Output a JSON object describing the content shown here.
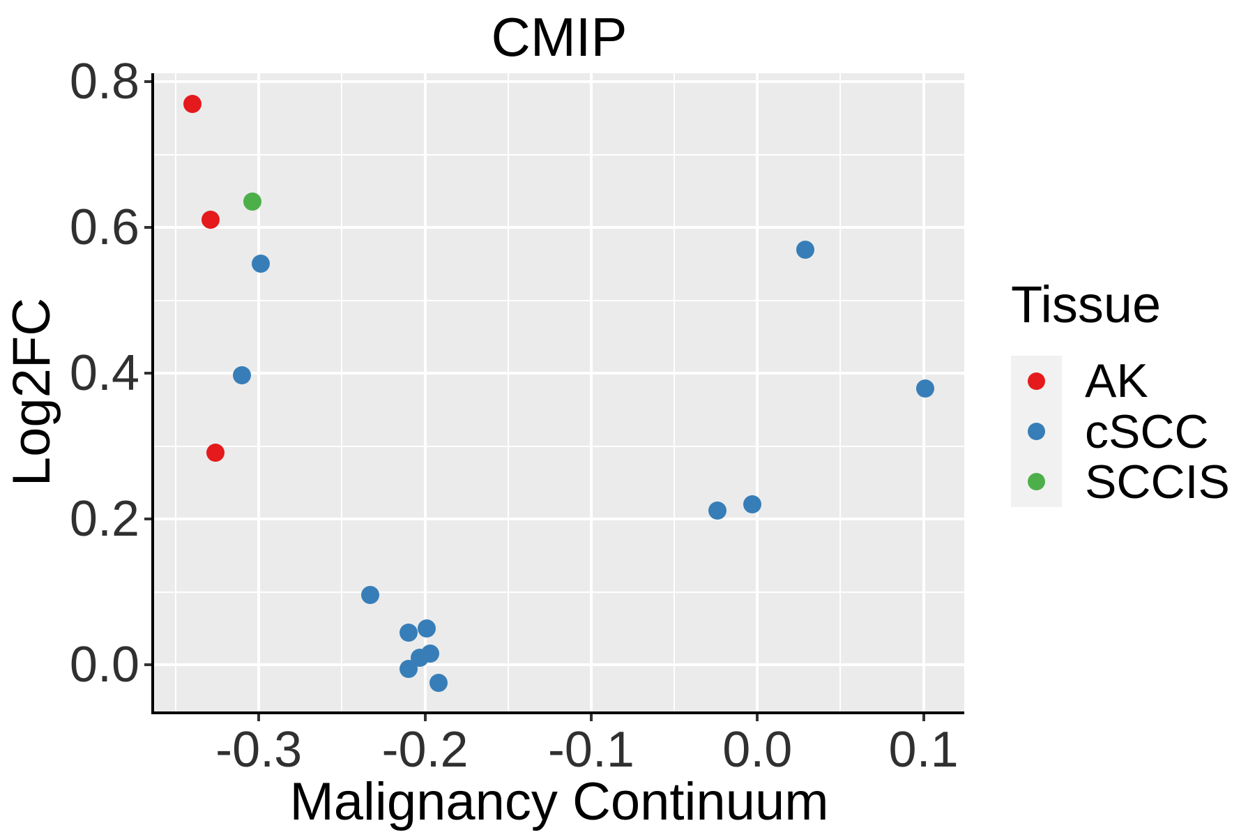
{
  "chart_data": {
    "type": "scatter",
    "title": "CMIP",
    "xlabel": "Malignancy Continuum",
    "ylabel": "Log2FC",
    "legend_title": "Tissue",
    "legend_position": "right",
    "grid": true,
    "xlim": [
      -0.363,
      0.1245
    ],
    "ylim": [
      -0.064,
      0.8115
    ],
    "x_ticks": [
      -0.3,
      -0.2,
      -0.1,
      0.0,
      0.1
    ],
    "x_tick_labels": [
      "-0.3",
      "-0.2",
      "-0.1",
      "0.0",
      "0.1"
    ],
    "y_ticks": [
      0.0,
      0.2,
      0.4,
      0.6,
      0.8
    ],
    "y_tick_labels": [
      "0.0",
      "0.2",
      "0.4",
      "0.6",
      "0.8"
    ],
    "x_minor_ticks": [
      -0.35,
      -0.25,
      -0.15,
      -0.05,
      0.05
    ],
    "y_minor_ticks": [
      0.1,
      0.3,
      0.5,
      0.7
    ],
    "series": [
      {
        "name": "AK",
        "color": "#E41A1C",
        "points": [
          [
            -0.34,
            0.769
          ],
          [
            -0.329,
            0.611
          ],
          [
            -0.326,
            0.291
          ]
        ]
      },
      {
        "name": "cSCC",
        "color": "#377EB8",
        "points": [
          [
            -0.299,
            0.55
          ],
          [
            -0.31,
            0.397
          ],
          [
            -0.233,
            0.096
          ],
          [
            -0.21,
            0.044
          ],
          [
            -0.199,
            0.05
          ],
          [
            -0.203,
            0.01
          ],
          [
            -0.197,
            0.015
          ],
          [
            -0.21,
            -0.006
          ],
          [
            -0.192,
            -0.025
          ],
          [
            -0.024,
            0.212
          ],
          [
            -0.003,
            0.22
          ],
          [
            0.029,
            0.569
          ],
          [
            0.101,
            0.379
          ]
        ]
      },
      {
        "name": "SCCIS",
        "color": "#4DAF4A",
        "points": [
          [
            -0.304,
            0.635
          ]
        ]
      }
    ],
    "colors": {
      "panel_background": "#EBEBEB",
      "gridline": "#FFFFFF",
      "legend_key_background": "#F1F1F1",
      "axis_line": "#000000",
      "tick_mark": "#333333"
    }
  }
}
